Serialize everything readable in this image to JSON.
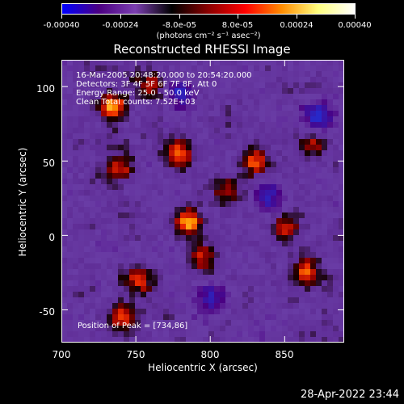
{
  "colorbar": {
    "tick_labels": [
      "-0.00040",
      "-0.00024",
      "-8.0e-05",
      "8.0e-05",
      "0.00024",
      "0.00040"
    ],
    "tick_values": [
      -0.0004,
      -0.00024,
      -8e-05,
      8e-05,
      0.00024,
      0.0004
    ],
    "units": "(photons cm⁻² s⁻¹ asec⁻²)",
    "colors": [
      "#0000ff",
      "#4b0082",
      "#7b3fb0",
      "#000000",
      "#8b0000",
      "#ff0000",
      "#ff8c00",
      "#ffff80",
      "#ffffff"
    ]
  },
  "chart_data": {
    "type": "heatmap",
    "title": "Reconstructed RHESSI Image",
    "xlabel": "Heliocentric X (arcsec)",
    "ylabel": "Heliocentric Y (arcsec)",
    "xlim": [
      700,
      890
    ],
    "ylim": [
      -72,
      118
    ],
    "x_ticks": [
      700,
      750,
      800,
      850
    ],
    "y_ticks": [
      -50,
      0,
      50,
      100
    ],
    "x_tick_labels": [
      "700",
      "750",
      "800",
      "850"
    ],
    "y_tick_labels": [
      "-50",
      "0",
      "50",
      "100"
    ],
    "annotations": [
      "16-Mar-2005 20:48:20.000 to 20:54:20.000",
      "Detectors: 3F 4F 5F 6F 7F 8F, Att 0",
      "Energy Range: 25.0 - 50.0 keV",
      "Clean     Total counts: 7.52E+03"
    ],
    "peak_label": "Position of Peak = [734,86]",
    "peak_position": [
      734,
      86
    ],
    "bright_sources": [
      {
        "x": 734,
        "y": 86,
        "intensity": 1.0
      },
      {
        "x": 778,
        "y": 55,
        "intensity": 0.85
      },
      {
        "x": 785,
        "y": 10,
        "intensity": 0.9
      },
      {
        "x": 740,
        "y": 45,
        "intensity": 0.7
      },
      {
        "x": 742,
        "y": -55,
        "intensity": 0.75
      },
      {
        "x": 752,
        "y": -30,
        "intensity": 0.6
      },
      {
        "x": 795,
        "y": -15,
        "intensity": 0.6
      },
      {
        "x": 830,
        "y": 50,
        "intensity": 0.7
      },
      {
        "x": 850,
        "y": 5,
        "intensity": 0.65
      },
      {
        "x": 865,
        "y": -25,
        "intensity": 0.7
      },
      {
        "x": 810,
        "y": 30,
        "intensity": 0.55
      },
      {
        "x": 868,
        "y": 60,
        "intensity": 0.55
      },
      {
        "x": 760,
        "y": 100,
        "intensity": 0.5
      }
    ],
    "dark_sources": [
      {
        "x": 800,
        "y": -42
      },
      {
        "x": 873,
        "y": 80
      },
      {
        "x": 780,
        "y": 95
      },
      {
        "x": 840,
        "y": 25
      }
    ]
  },
  "timestamp": "28-Apr-2022 23:44"
}
